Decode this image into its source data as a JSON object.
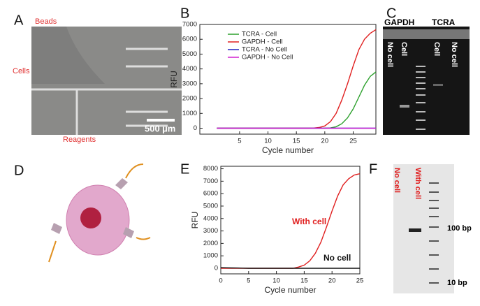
{
  "chart_data": [
    {
      "type": "line",
      "panel": "B",
      "xlabel": "Cycle number",
      "ylabel": "RFU",
      "x": [
        1,
        2,
        3,
        4,
        5,
        6,
        7,
        8,
        9,
        10,
        11,
        12,
        13,
        14,
        15,
        16,
        17,
        18,
        19,
        20,
        21,
        22,
        23,
        24,
        25,
        26,
        27,
        28,
        29
      ],
      "series": [
        {
          "name": "TCRA - Cell",
          "color": "#2ca02c",
          "values": [
            0,
            0,
            0,
            0,
            0,
            0,
            0,
            0,
            0,
            0,
            0,
            0,
            0,
            0,
            0,
            0,
            0,
            0,
            0,
            0,
            20,
            100,
            300,
            700,
            1300,
            2100,
            2900,
            3500,
            3800
          ]
        },
        {
          "name": "GAPDH - Cell",
          "color": "#e02020",
          "values": [
            0,
            0,
            0,
            0,
            0,
            0,
            0,
            0,
            0,
            0,
            0,
            0,
            0,
            0,
            0,
            0,
            0,
            10,
            50,
            150,
            450,
            1000,
            1900,
            3000,
            4200,
            5300,
            6000,
            6400,
            6650
          ]
        },
        {
          "name": "TCRA - No Cell",
          "color": "#2020c0",
          "values": [
            0,
            0,
            0,
            0,
            0,
            0,
            0,
            0,
            0,
            0,
            0,
            0,
            0,
            0,
            0,
            0,
            0,
            0,
            0,
            0,
            0,
            0,
            0,
            0,
            0,
            0,
            0,
            0,
            0
          ]
        },
        {
          "name": "GAPDH - No Cell",
          "color": "#d020d0",
          "values": [
            0,
            0,
            0,
            0,
            0,
            0,
            0,
            0,
            0,
            0,
            0,
            0,
            0,
            0,
            0,
            0,
            0,
            0,
            0,
            0,
            0,
            0,
            0,
            0,
            0,
            0,
            0,
            0,
            0
          ]
        }
      ],
      "xlim": [
        -2,
        29
      ],
      "ylim": [
        -400,
        7000
      ],
      "xticks": [
        5,
        10,
        15,
        20,
        25
      ],
      "yticks": [
        0,
        1000,
        2000,
        3000,
        4000,
        5000,
        6000,
        7000
      ],
      "legend": "upper left",
      "grid": false
    },
    {
      "type": "line",
      "panel": "E",
      "xlabel": "Cycle number",
      "ylabel": "RFU",
      "x": [
        0,
        1,
        2,
        3,
        4,
        5,
        6,
        7,
        8,
        9,
        10,
        11,
        12,
        13,
        14,
        15,
        16,
        17,
        18,
        19,
        20,
        21,
        22,
        23,
        24,
        25
      ],
      "series": [
        {
          "name": "With cell",
          "color": "#e02020",
          "values": [
            0,
            0,
            0,
            0,
            0,
            0,
            0,
            0,
            0,
            0,
            0,
            0,
            0,
            0,
            100,
            250,
            600,
            1200,
            2100,
            3300,
            4600,
            5800,
            6700,
            7200,
            7500,
            7600
          ]
        },
        {
          "name": "No cell",
          "color": "#111111",
          "values": [
            50,
            40,
            30,
            20,
            10,
            0,
            0,
            0,
            0,
            0,
            0,
            0,
            0,
            0,
            0,
            0,
            0,
            0,
            0,
            0,
            0,
            0,
            0,
            0,
            0,
            0
          ]
        }
      ],
      "xlim": [
        0,
        25
      ],
      "ylim": [
        -450,
        8200
      ],
      "xticks": [
        0,
        5,
        10,
        15,
        20,
        25
      ],
      "yticks": [
        0,
        1000,
        2000,
        3000,
        4000,
        5000,
        6000,
        7000,
        8000
      ],
      "legend": "inline",
      "grid": false
    }
  ],
  "panels": {
    "a": {
      "label": "A",
      "beads": "Beads",
      "cells": "Cells",
      "reagents": "Reagents",
      "scale": "500 µm"
    },
    "c": {
      "label": "C",
      "gene1": "GAPDH",
      "gene2": "TCRA",
      "lanes": [
        "No cell",
        "Cell",
        "Cell",
        "No cell"
      ]
    },
    "d": {
      "label": "D"
    },
    "f": {
      "label": "F",
      "lanes": [
        "No cell",
        "With cell"
      ],
      "markers": [
        "100 bp",
        "10 bp"
      ]
    }
  }
}
